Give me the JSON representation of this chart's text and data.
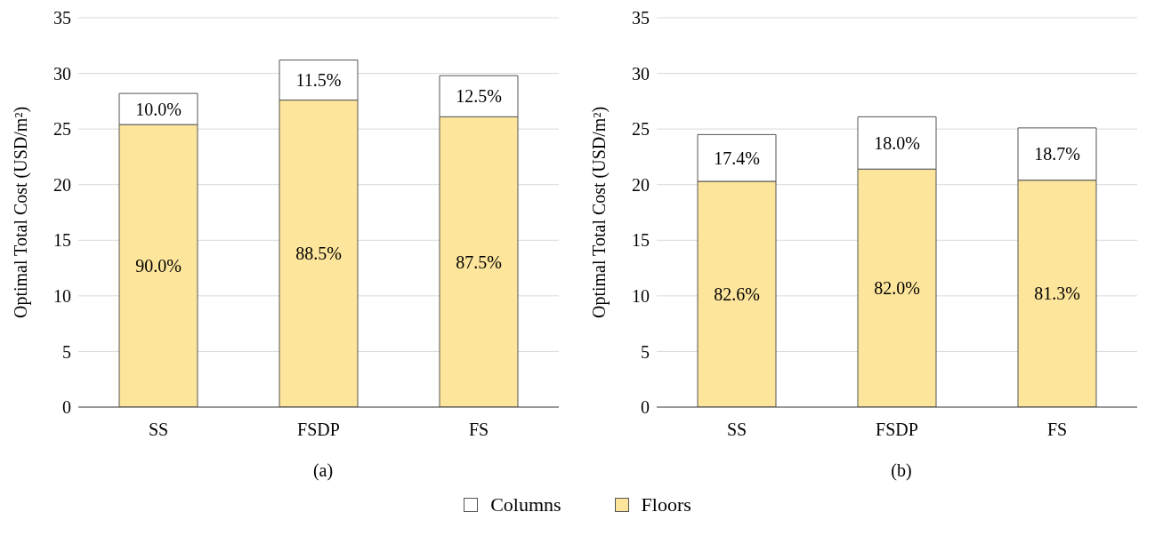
{
  "chart_data": [
    {
      "type": "bar",
      "title": "(a)",
      "ylabel": "Optimal Total Cost (USD/m²)",
      "categories": [
        "SS",
        "FSDP",
        "FS"
      ],
      "stacked": true,
      "ylim": [
        0,
        35
      ],
      "yticks": [
        0,
        5,
        10,
        15,
        20,
        25,
        30,
        35
      ],
      "grid": "y",
      "legend": "bottom",
      "series": [
        {
          "name": "Floors",
          "color": "#fde59b",
          "values": [
            25.4,
            27.6,
            26.1
          ]
        },
        {
          "name": "Columns",
          "color": "#ffffff",
          "values": [
            2.8,
            3.6,
            3.7
          ]
        }
      ],
      "annotations": [
        "90.0%",
        "88.5%",
        "87.5%",
        "10.0%",
        "11.5%",
        "12.5%"
      ]
    },
    {
      "type": "bar",
      "title": "(b)",
      "ylabel": "Optimal Total Cost (USD/m²)",
      "categories": [
        "SS",
        "FSDP",
        "FS"
      ],
      "stacked": true,
      "ylim": [
        0,
        35
      ],
      "yticks": [
        0,
        5,
        10,
        15,
        20,
        25,
        30,
        35
      ],
      "grid": "y",
      "legend": "bottom",
      "series": [
        {
          "name": "Floors",
          "color": "#fde59b",
          "values": [
            20.3,
            21.4,
            20.4
          ]
        },
        {
          "name": "Columns",
          "color": "#ffffff",
          "values": [
            4.2,
            4.7,
            4.7
          ]
        }
      ],
      "annotations": [
        "82.6%",
        "82.0%",
        "81.3%",
        "17.4%",
        "18.0%",
        "18.7%"
      ]
    }
  ]
}
